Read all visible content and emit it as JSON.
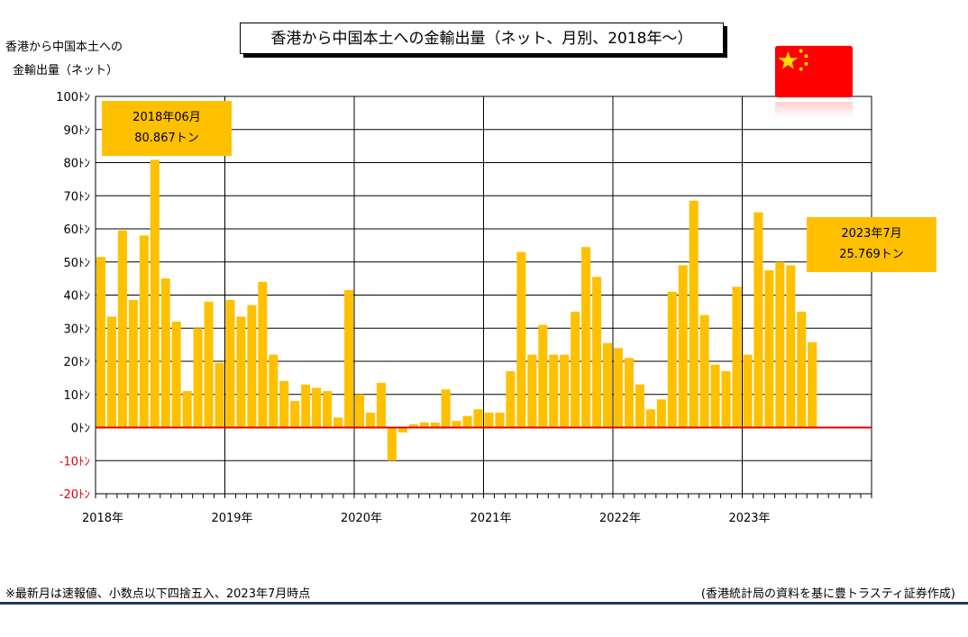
{
  "title": "香港から中国本土への金輸出量（ネット、月別、2018年～）",
  "y_axis_title_line1": "香港から中国本土への",
  "y_axis_title_line2": "金輸出量（ネット）",
  "flag": "china-flag",
  "callouts": [
    {
      "line1": "2018年06月",
      "line2": "80.867トン"
    },
    {
      "line1": "2023年7月",
      "line2": "25.769トン"
    }
  ],
  "footnote_left": "※最新月は速報値、小数点以下四捨五入、2023年7月時点",
  "footnote_right": "(香港統計局の資料を基に豊トラスティ証券作成)",
  "colors": {
    "bar": "#ffc000",
    "zero_line": "#e00000",
    "negative_tick": "#e00000",
    "grid": "#000000",
    "accent_rule": "#1f3864",
    "flag_red": "#ff0000",
    "flag_star": "#ffde00"
  },
  "chart_data": {
    "type": "bar",
    "unit": "トン",
    "ylim": [
      -20,
      100
    ],
    "y_ticks": [
      100,
      90,
      80,
      70,
      60,
      50,
      40,
      30,
      20,
      10,
      0,
      -10,
      -20
    ],
    "y_tick_labels": [
      "100ﾄﾝ",
      "90ﾄﾝ",
      "80ﾄﾝ",
      "70ﾄﾝ",
      "60ﾄﾝ",
      "50ﾄﾝ",
      "40ﾄﾝ",
      "30ﾄﾝ",
      "20ﾄﾝ",
      "10ﾄﾝ",
      "0ﾄﾝ",
      "-10ﾄﾝ",
      "-20ﾄﾝ"
    ],
    "x_year_labels": [
      "2018年",
      "2019年",
      "2020年",
      "2021年",
      "2022年",
      "2023年"
    ],
    "months_per_axis": 72,
    "grid": true,
    "values": [
      51.5,
      33.5,
      59.5,
      38.5,
      58,
      80.867,
      45,
      32,
      11,
      30,
      38,
      19.5,
      38.5,
      33.5,
      37,
      44,
      22,
      14,
      8,
      13,
      12,
      11,
      3,
      41.5,
      10,
      4.5,
      13.5,
      -10,
      -1.5,
      1,
      1.5,
      1.5,
      11.5,
      2,
      3.5,
      5.5,
      4.5,
      4.5,
      17,
      53,
      22,
      31,
      22,
      22,
      35,
      54.5,
      45.5,
      25.5,
      24,
      21,
      13,
      5.5,
      8.5,
      41,
      49,
      68.5,
      34,
      19,
      17,
      42.5,
      22,
      65,
      47.5,
      50,
      49,
      35,
      25.769
    ]
  }
}
